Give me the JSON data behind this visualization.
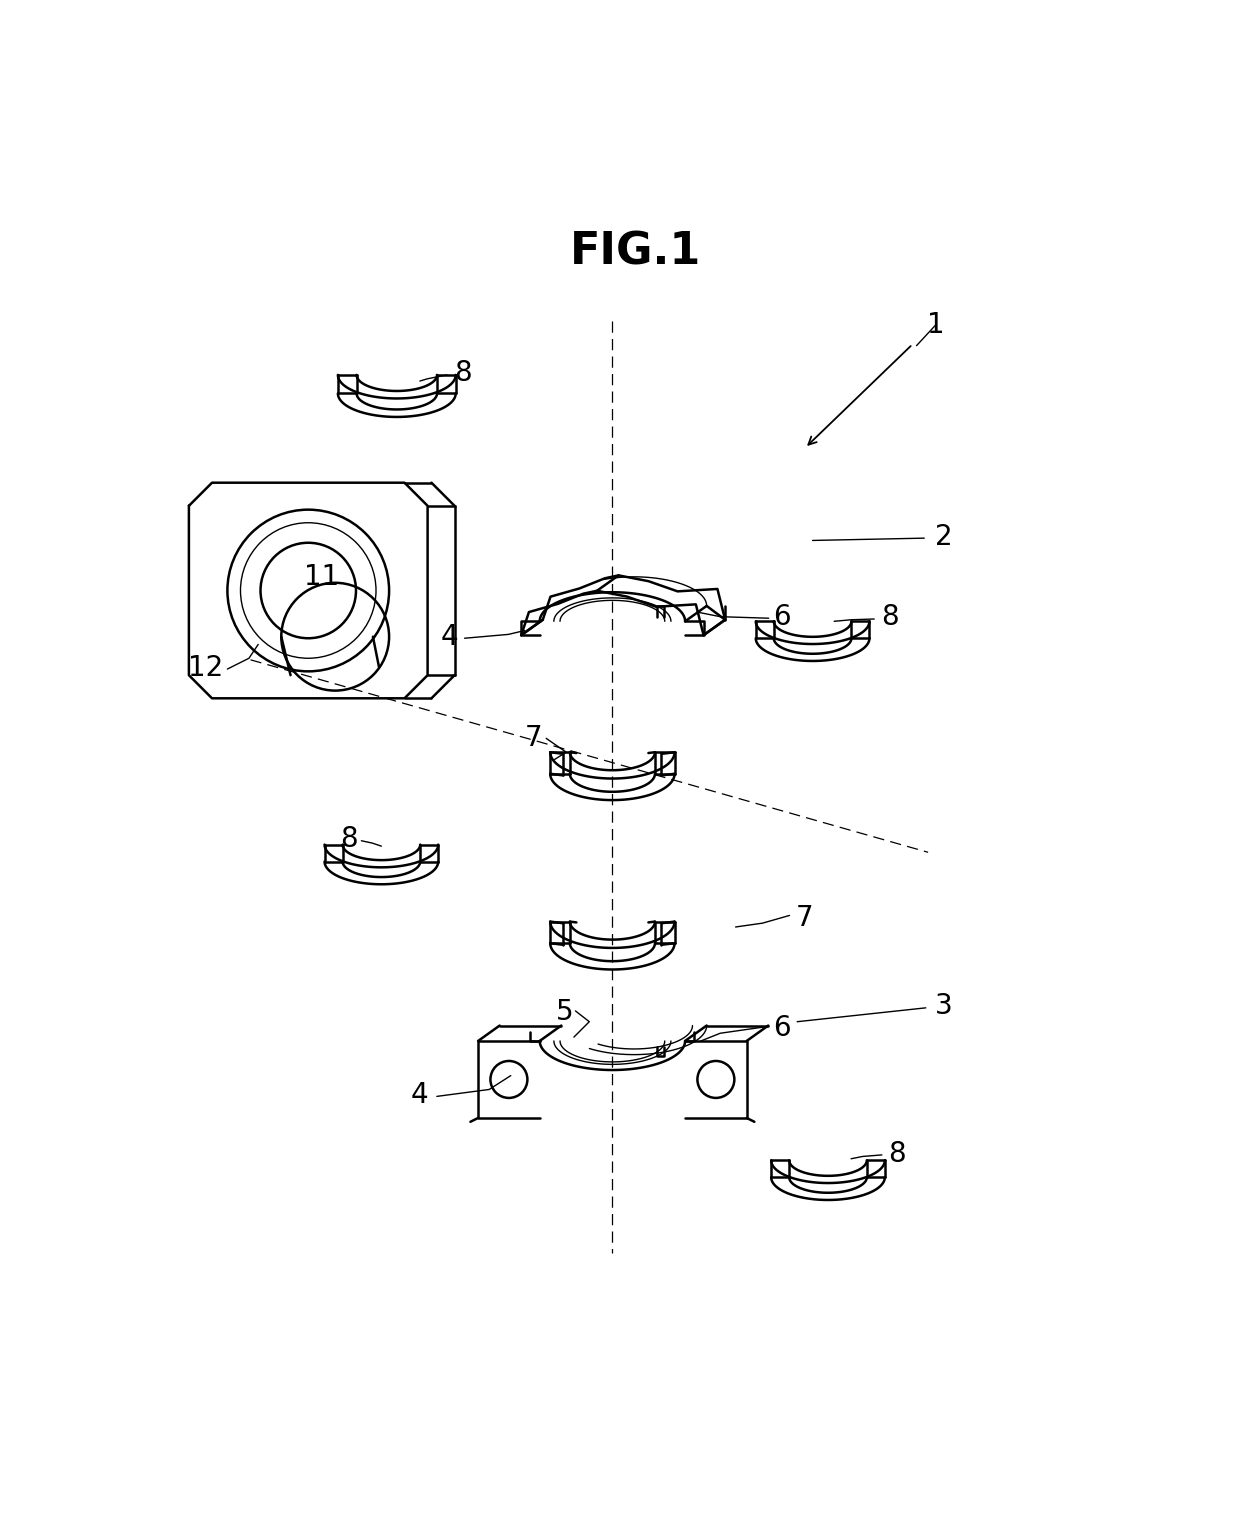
{
  "title": "FIG.1",
  "bg": "#ffffff",
  "lw": 1.8,
  "lw_thin": 1.0,
  "fs_label": 20,
  "fs_title": 32
}
